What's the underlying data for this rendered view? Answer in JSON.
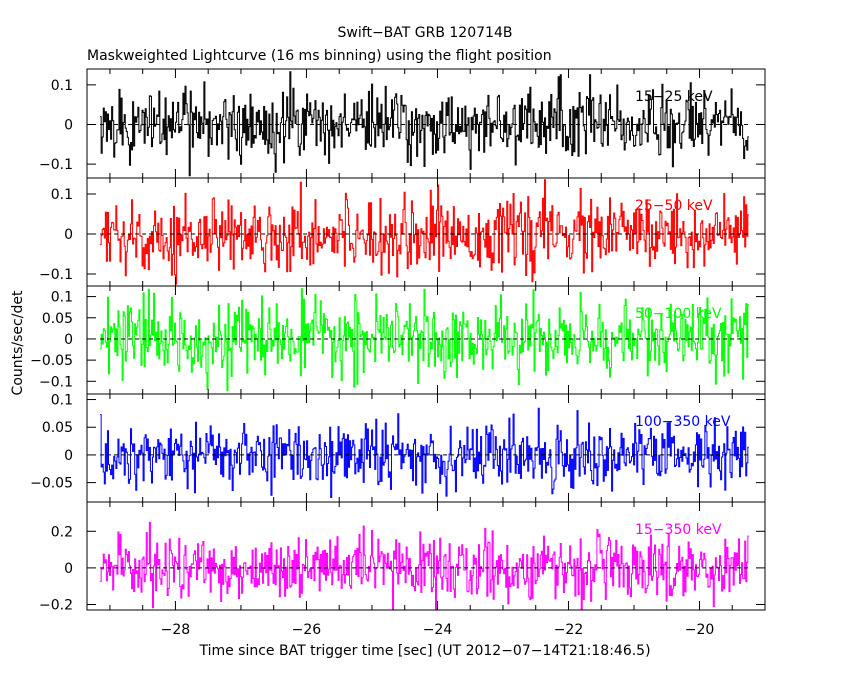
{
  "chart_data": {
    "type": "line",
    "title": "Swift−BAT GRB 120714B",
    "subtitle": "Maskweighted Lightcurve (16 ms binning) using the flight position",
    "xlabel": "Time since BAT trigger time [sec] (UT 2012−07−14T21:18:46.5)",
    "ylabel": "Counts/sec/det",
    "xlim": [
      -29.35,
      -19.0
    ],
    "x_ticks": [
      -28,
      -26,
      -24,
      -22,
      -20
    ],
    "x_tick_labels": [
      "−28",
      "−26",
      "−24",
      "−22",
      "−20"
    ],
    "x_data_range": [
      -29.15,
      -19.25
    ],
    "bin_width": 0.016,
    "panels": [
      {
        "name": "15−25 keV",
        "color": "#000000",
        "ylim": [
          -0.135,
          0.14
        ],
        "y_ticks": [
          -0.1,
          0,
          0.1
        ],
        "y_tick_labels": [
          "−0.1",
          "0",
          "0.1"
        ],
        "noise_sigma": 0.045,
        "noise_peak": 0.14
      },
      {
        "name": "25−50 keV",
        "color": "#ff0000",
        "ylim": [
          -0.13,
          0.14
        ],
        "y_ticks": [
          -0.1,
          0,
          0.1
        ],
        "y_tick_labels": [
          "−0.1",
          "0",
          "0.1"
        ],
        "noise_sigma": 0.045,
        "noise_peak": 0.14
      },
      {
        "name": "50−100 keV",
        "color": "#00ff00",
        "ylim": [
          -0.13,
          0.125
        ],
        "y_ticks": [
          -0.1,
          -0.05,
          0,
          0.05,
          0.1
        ],
        "y_tick_labels": [
          "−0.1",
          "−0.05",
          "0",
          "0.05",
          "0.1"
        ],
        "noise_sigma": 0.042,
        "noise_peak": 0.125
      },
      {
        "name": "100−350 keV",
        "color": "#0000ff",
        "ylim": [
          -0.085,
          0.11
        ],
        "y_ticks": [
          -0.05,
          0,
          0.05,
          0.1
        ],
        "y_tick_labels": [
          "−0.05",
          "0",
          "0.05",
          "0.1"
        ],
        "noise_sigma": 0.03,
        "noise_peak": 0.11
      },
      {
        "name": "15−350 keV",
        "color": "#ff00ff",
        "ylim": [
          -0.23,
          0.36
        ],
        "y_ticks": [
          -0.2,
          0,
          0.2
        ],
        "y_tick_labels": [
          "−0.2",
          "0",
          "0.2"
        ],
        "noise_sigma": 0.085,
        "noise_peak": 0.35
      }
    ],
    "grid": false,
    "zero_line": "dashed"
  }
}
